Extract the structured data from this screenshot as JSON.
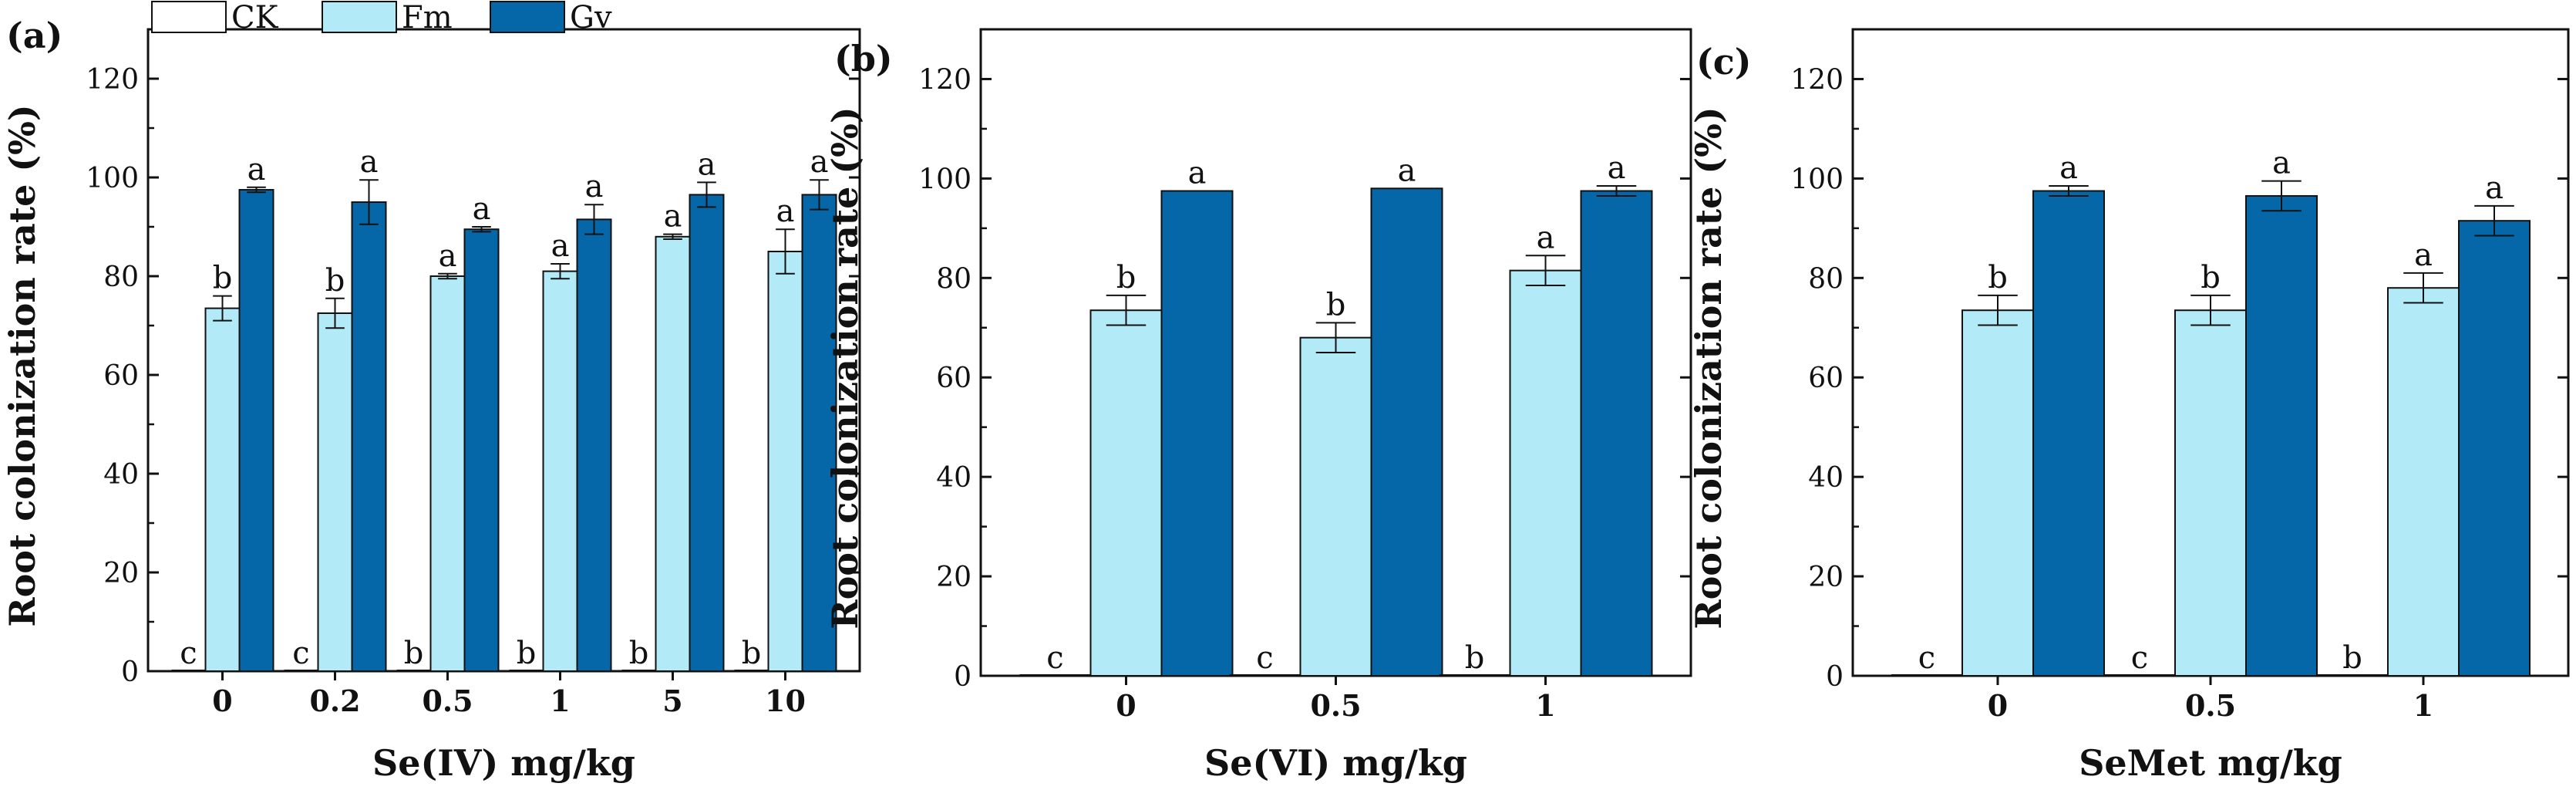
{
  "colors": {
    "CK": "#ffffff",
    "Fm": "#b2ebf7",
    "Gv": "#0567a8",
    "stroke": "#111111"
  },
  "legend": [
    "CK",
    "Fm",
    "Gv"
  ],
  "chart_data": [
    {
      "type": "bar",
      "panel_label": "(a)",
      "xlabel": "Se(IV) mg/kg",
      "ylabel": "Root colonization rate (%)",
      "ylim": [
        0,
        130
      ],
      "yticks": [
        "0",
        "20",
        "40",
        "60",
        "80",
        "100",
        "120"
      ],
      "categories": [
        "0",
        "0.2",
        "0.5",
        "1",
        "5",
        "10"
      ],
      "series": [
        {
          "name": "CK",
          "values": [
            0,
            0,
            0,
            0,
            0,
            0
          ],
          "errors": [
            0,
            0,
            0,
            0,
            0,
            0
          ],
          "letters": [
            "c",
            "c",
            "b",
            "b",
            "b",
            "b"
          ]
        },
        {
          "name": "Fm",
          "values": [
            73.5,
            72.5,
            80,
            81,
            88,
            85
          ],
          "errors": [
            2.5,
            3,
            0.5,
            1.5,
            0.5,
            4.5
          ],
          "letters": [
            "b",
            "b",
            "a",
            "a",
            "a",
            "a"
          ]
        },
        {
          "name": "Gv",
          "values": [
            97.5,
            95,
            89.5,
            91.5,
            96.5,
            96.5
          ],
          "errors": [
            0.5,
            4.5,
            0.5,
            3,
            2.5,
            3
          ],
          "letters": [
            "a",
            "a",
            "a",
            "a",
            "a",
            "a"
          ]
        }
      ]
    },
    {
      "type": "bar",
      "panel_label": "(b)",
      "xlabel": "Se(VI) mg/kg",
      "ylabel": "Root colonization rate (%)",
      "ylim": [
        0,
        130
      ],
      "yticks": [
        "0",
        "20",
        "40",
        "60",
        "80",
        "100",
        "120"
      ],
      "categories": [
        "0",
        "0.5",
        "1"
      ],
      "series": [
        {
          "name": "CK",
          "values": [
            0,
            0,
            0
          ],
          "errors": [
            0,
            0,
            0
          ],
          "letters": [
            "c",
            "c",
            "b"
          ]
        },
        {
          "name": "Fm",
          "values": [
            73.5,
            68,
            81.5
          ],
          "errors": [
            3,
            3,
            3
          ],
          "letters": [
            "b",
            "b",
            "a"
          ]
        },
        {
          "name": "Gv",
          "values": [
            97.5,
            98,
            97.5
          ],
          "errors": [
            0,
            0,
            1
          ],
          "letters": [
            "a",
            "a",
            "a"
          ]
        }
      ]
    },
    {
      "type": "bar",
      "panel_label": "(c)",
      "xlabel": "SeMet mg/kg",
      "ylabel": "Root colonization rate (%)",
      "ylim": [
        0,
        130
      ],
      "yticks": [
        "0",
        "20",
        "40",
        "60",
        "80",
        "100",
        "120"
      ],
      "categories": [
        "0",
        "0.5",
        "1"
      ],
      "series": [
        {
          "name": "CK",
          "values": [
            0,
            0,
            0
          ],
          "errors": [
            0,
            0,
            0
          ],
          "letters": [
            "c",
            "c",
            "b"
          ]
        },
        {
          "name": "Fm",
          "values": [
            73.5,
            73.5,
            78
          ],
          "errors": [
            3,
            3,
            3
          ],
          "letters": [
            "b",
            "b",
            "a"
          ]
        },
        {
          "name": "Gv",
          "values": [
            97.5,
            96.5,
            91.5
          ],
          "errors": [
            1,
            3,
            3
          ],
          "letters": [
            "a",
            "a",
            "a"
          ]
        }
      ]
    }
  ]
}
